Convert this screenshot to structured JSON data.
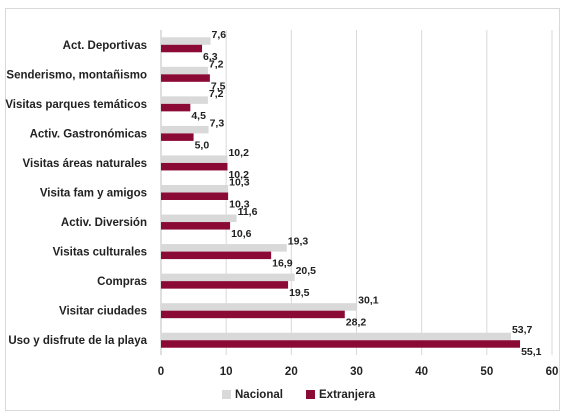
{
  "chart_data": {
    "type": "bar",
    "orientation": "horizontal",
    "categories": [
      "Act. Deportivas",
      "Senderismo, montañismo",
      "Visitas parques temáticos",
      "Activ. Gastronómicas",
      "Visitas áreas naturales",
      "Visita fam y amigos",
      "Activ. Diversión",
      "Visitas culturales",
      "Compras",
      "Visitar ciudades",
      "Uso y disfrute de la playa"
    ],
    "series": [
      {
        "name": "Nacional",
        "color": "#d9d9d9",
        "values": [
          7.6,
          7.2,
          7.2,
          7.3,
          10.2,
          10.3,
          11.6,
          19.3,
          20.5,
          30.1,
          53.7
        ],
        "labels": [
          "7,6",
          "7,2",
          "7,2",
          "7,3",
          "10,2",
          "10,3",
          "11,6",
          "19,3",
          "20,5",
          "30,1",
          "53,7"
        ]
      },
      {
        "name": "Extranjera",
        "color": "#8b0a35",
        "values": [
          6.3,
          7.5,
          4.5,
          5.0,
          10.2,
          10.3,
          10.6,
          16.9,
          19.5,
          28.2,
          55.1
        ],
        "labels": [
          "6,3",
          "7,5",
          "4,5",
          "5,0",
          "10,2",
          "10,3",
          "10,6",
          "16,9",
          "19,5",
          "28,2",
          "55,1"
        ]
      }
    ],
    "xlim": [
      0,
      60
    ],
    "xticks": [
      "0",
      "10",
      "20",
      "30",
      "40",
      "50",
      "60"
    ],
    "grid": true,
    "legend_position": "bottom"
  }
}
